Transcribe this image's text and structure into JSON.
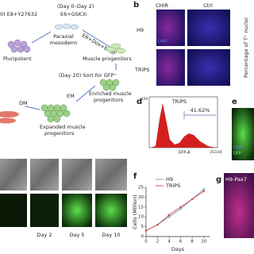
{
  "panel_a": {
    "medium_day0": "0) E8+Y27632",
    "day_range": "(Day 0–Day 2)",
    "medium_gsk": "E6+GSK3i",
    "pluripotent": "Pluripotent",
    "paraxial": [
      "Paraxial",
      "mesoderm"
    ],
    "medium_dox": "E6+Dox+bFGF",
    "muscle": "Muscle progenitors",
    "sort": "(Day 20) Sort for GFP⁺",
    "dm": "DM",
    "em": "EM",
    "enriched": [
      "Enriched muscle",
      "progenitors"
    ],
    "expanded": [
      "Expanded muscle",
      "progenitors"
    ]
  },
  "panel_b": {
    "letter": "b",
    "columns": [
      "CHIR",
      "Ctrl"
    ],
    "rows": [
      "H9",
      "TRiPS"
    ],
    "stain": "DAPI",
    "side_label": "Percentage of T⁺ nuclei"
  },
  "panel_c": {
    "days": [
      "Day 2",
      "Day 5",
      "Day 10"
    ]
  },
  "panel_d": {
    "letter": "d",
    "title": "TRiPS",
    "gate": "41.62%",
    "xlabel": "GFP-A",
    "ymax": "139",
    "xmax": "252144"
  },
  "panel_e": {
    "letter": "e",
    "stains": [
      "DAPI",
      "GFP"
    ]
  },
  "panel_g": {
    "letter": "g",
    "title": "H9-Pax7"
  },
  "chart_data": {
    "type": "line",
    "letter": "f",
    "xlabel": "Days",
    "ylabel": "Cells (Million)",
    "x": [
      0,
      2,
      4,
      6,
      8,
      10
    ],
    "series": [
      {
        "name": "H9",
        "color": "#7aa6d8",
        "values": [
          3,
          6,
          10,
          14,
          19,
          24
        ]
      },
      {
        "name": "TRiPS",
        "color": "#d9534f",
        "values": [
          3,
          6,
          11,
          15,
          19,
          23
        ]
      }
    ],
    "xlim": [
      0,
      11
    ],
    "ylim": [
      0,
      25
    ],
    "xticks": [
      0,
      2,
      4,
      6,
      8,
      10
    ],
    "yticks": [
      0,
      5,
      10,
      15,
      20,
      25
    ]
  }
}
